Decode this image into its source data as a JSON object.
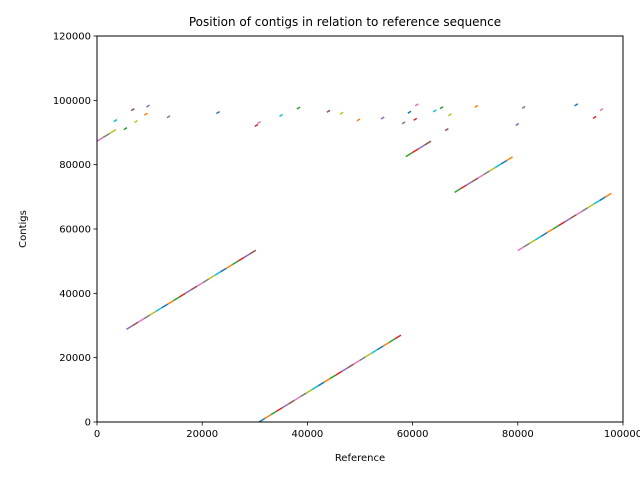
{
  "chart_data": {
    "type": "scatter",
    "title": "Position of contigs in relation to reference sequence",
    "xlabel": "Reference",
    "ylabel": "Contigs",
    "xlim": [
      0,
      100000
    ],
    "ylim": [
      0,
      120000
    ],
    "xticks": [
      0,
      20000,
      40000,
      60000,
      80000,
      100000
    ],
    "xtick_labels": [
      "0",
      "20000",
      "40000",
      "60000",
      "80000",
      "100000"
    ],
    "yticks": [
      0,
      20000,
      40000,
      60000,
      80000,
      100000,
      120000
    ],
    "ytick_labels": [
      "0",
      "20000",
      "40000",
      "60000",
      "80000",
      "100000",
      "120000"
    ],
    "grid": false,
    "legend": "none",
    "palette": [
      "#1f77b4",
      "#ff7f0e",
      "#2ca02c",
      "#d62728",
      "#9467bd",
      "#8c564b",
      "#e377c2",
      "#7f7f7f",
      "#bcbd22",
      "#17becf"
    ],
    "diagonal_segments": [
      {
        "x": [
          30800,
          57800
        ],
        "y": [
          0,
          27000
        ]
      },
      {
        "x": [
          5600,
          30200
        ],
        "y": [
          28800,
          53400
        ]
      },
      {
        "x": [
          80000,
          97800
        ],
        "y": [
          53300,
          71100
        ]
      },
      {
        "x": [
          68000,
          79000
        ],
        "y": [
          71400,
          82400
        ]
      },
      {
        "x": [
          58700,
          63500
        ],
        "y": [
          82500,
          87300
        ]
      },
      {
        "x": [
          0,
          3600
        ],
        "y": [
          87300,
          90900
        ]
      }
    ],
    "fragments": [
      {
        "x": 3500,
        "y": 93700
      },
      {
        "x": 5400,
        "y": 91200
      },
      {
        "x": 6800,
        "y": 97100
      },
      {
        "x": 7400,
        "y": 93400
      },
      {
        "x": 9300,
        "y": 95700
      },
      {
        "x": 9700,
        "y": 98200
      },
      {
        "x": 13600,
        "y": 94900
      },
      {
        "x": 23000,
        "y": 96200
      },
      {
        "x": 30300,
        "y": 92200
      },
      {
        "x": 30800,
        "y": 93100
      },
      {
        "x": 35000,
        "y": 95300
      },
      {
        "x": 38300,
        "y": 97600
      },
      {
        "x": 44000,
        "y": 96600
      },
      {
        "x": 46500,
        "y": 96000
      },
      {
        "x": 49700,
        "y": 93900
      },
      {
        "x": 54300,
        "y": 94500
      },
      {
        "x": 58300,
        "y": 93000
      },
      {
        "x": 59400,
        "y": 96300
      },
      {
        "x": 60500,
        "y": 94100
      },
      {
        "x": 60800,
        "y": 98600
      },
      {
        "x": 64200,
        "y": 96700
      },
      {
        "x": 65500,
        "y": 97700
      },
      {
        "x": 66500,
        "y": 90900
      },
      {
        "x": 67100,
        "y": 95500
      },
      {
        "x": 72100,
        "y": 98100
      },
      {
        "x": 79900,
        "y": 92500
      },
      {
        "x": 81100,
        "y": 97800
      },
      {
        "x": 91100,
        "y": 98600
      },
      {
        "x": 94600,
        "y": 94700
      },
      {
        "x": 95900,
        "y": 97100
      }
    ]
  }
}
